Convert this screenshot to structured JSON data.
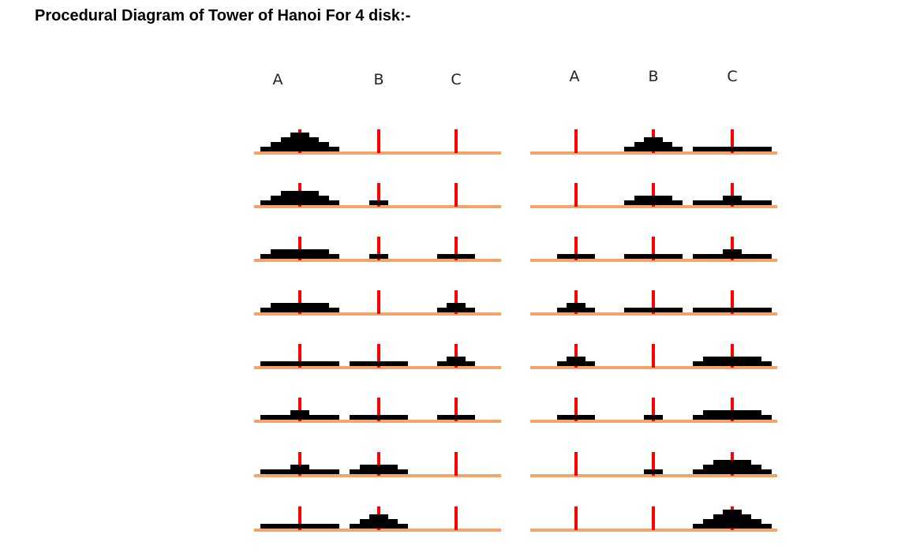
{
  "title": "Procedural Diagram of Tower of Hanoi For 4 disk:-",
  "peg_labels": [
    "A",
    "B",
    "C"
  ],
  "colors": {
    "peg": "#ff0000",
    "base": "#f4a46a",
    "disk": "#000000",
    "text": "#000000"
  },
  "columns": [
    {
      "states": [
        {
          "A": [
            4,
            3,
            2,
            1
          ],
          "B": [],
          "C": []
        },
        {
          "A": [
            4,
            3,
            2
          ],
          "B": [
            1
          ],
          "C": []
        },
        {
          "A": [
            4,
            3
          ],
          "B": [
            1
          ],
          "C": [
            2
          ]
        },
        {
          "A": [
            4,
            3
          ],
          "B": [],
          "C": [
            2,
            1
          ]
        },
        {
          "A": [
            4
          ],
          "B": [
            3
          ],
          "C": [
            2,
            1
          ]
        },
        {
          "A": [
            4,
            1
          ],
          "B": [
            3
          ],
          "C": [
            2
          ]
        },
        {
          "A": [
            4,
            1
          ],
          "B": [
            3,
            2
          ],
          "C": []
        },
        {
          "A": [
            4
          ],
          "B": [
            3,
            2,
            1
          ],
          "C": []
        }
      ]
    },
    {
      "states": [
        {
          "A": [],
          "B": [
            3,
            2,
            1
          ],
          "C": [
            4
          ]
        },
        {
          "A": [],
          "B": [
            3,
            2
          ],
          "C": [
            4,
            1
          ]
        },
        {
          "A": [
            2
          ],
          "B": [
            3
          ],
          "C": [
            4,
            1
          ]
        },
        {
          "A": [
            2,
            1
          ],
          "B": [
            3
          ],
          "C": [
            4
          ]
        },
        {
          "A": [
            2,
            1
          ],
          "B": [],
          "C": [
            4,
            3
          ]
        },
        {
          "A": [
            2
          ],
          "B": [
            1
          ],
          "C": [
            4,
            3
          ]
        },
        {
          "A": [],
          "B": [
            1
          ],
          "C": [
            4,
            3,
            2
          ]
        },
        {
          "A": [],
          "B": [],
          "C": [
            4,
            3,
            2,
            1
          ]
        }
      ]
    }
  ]
}
